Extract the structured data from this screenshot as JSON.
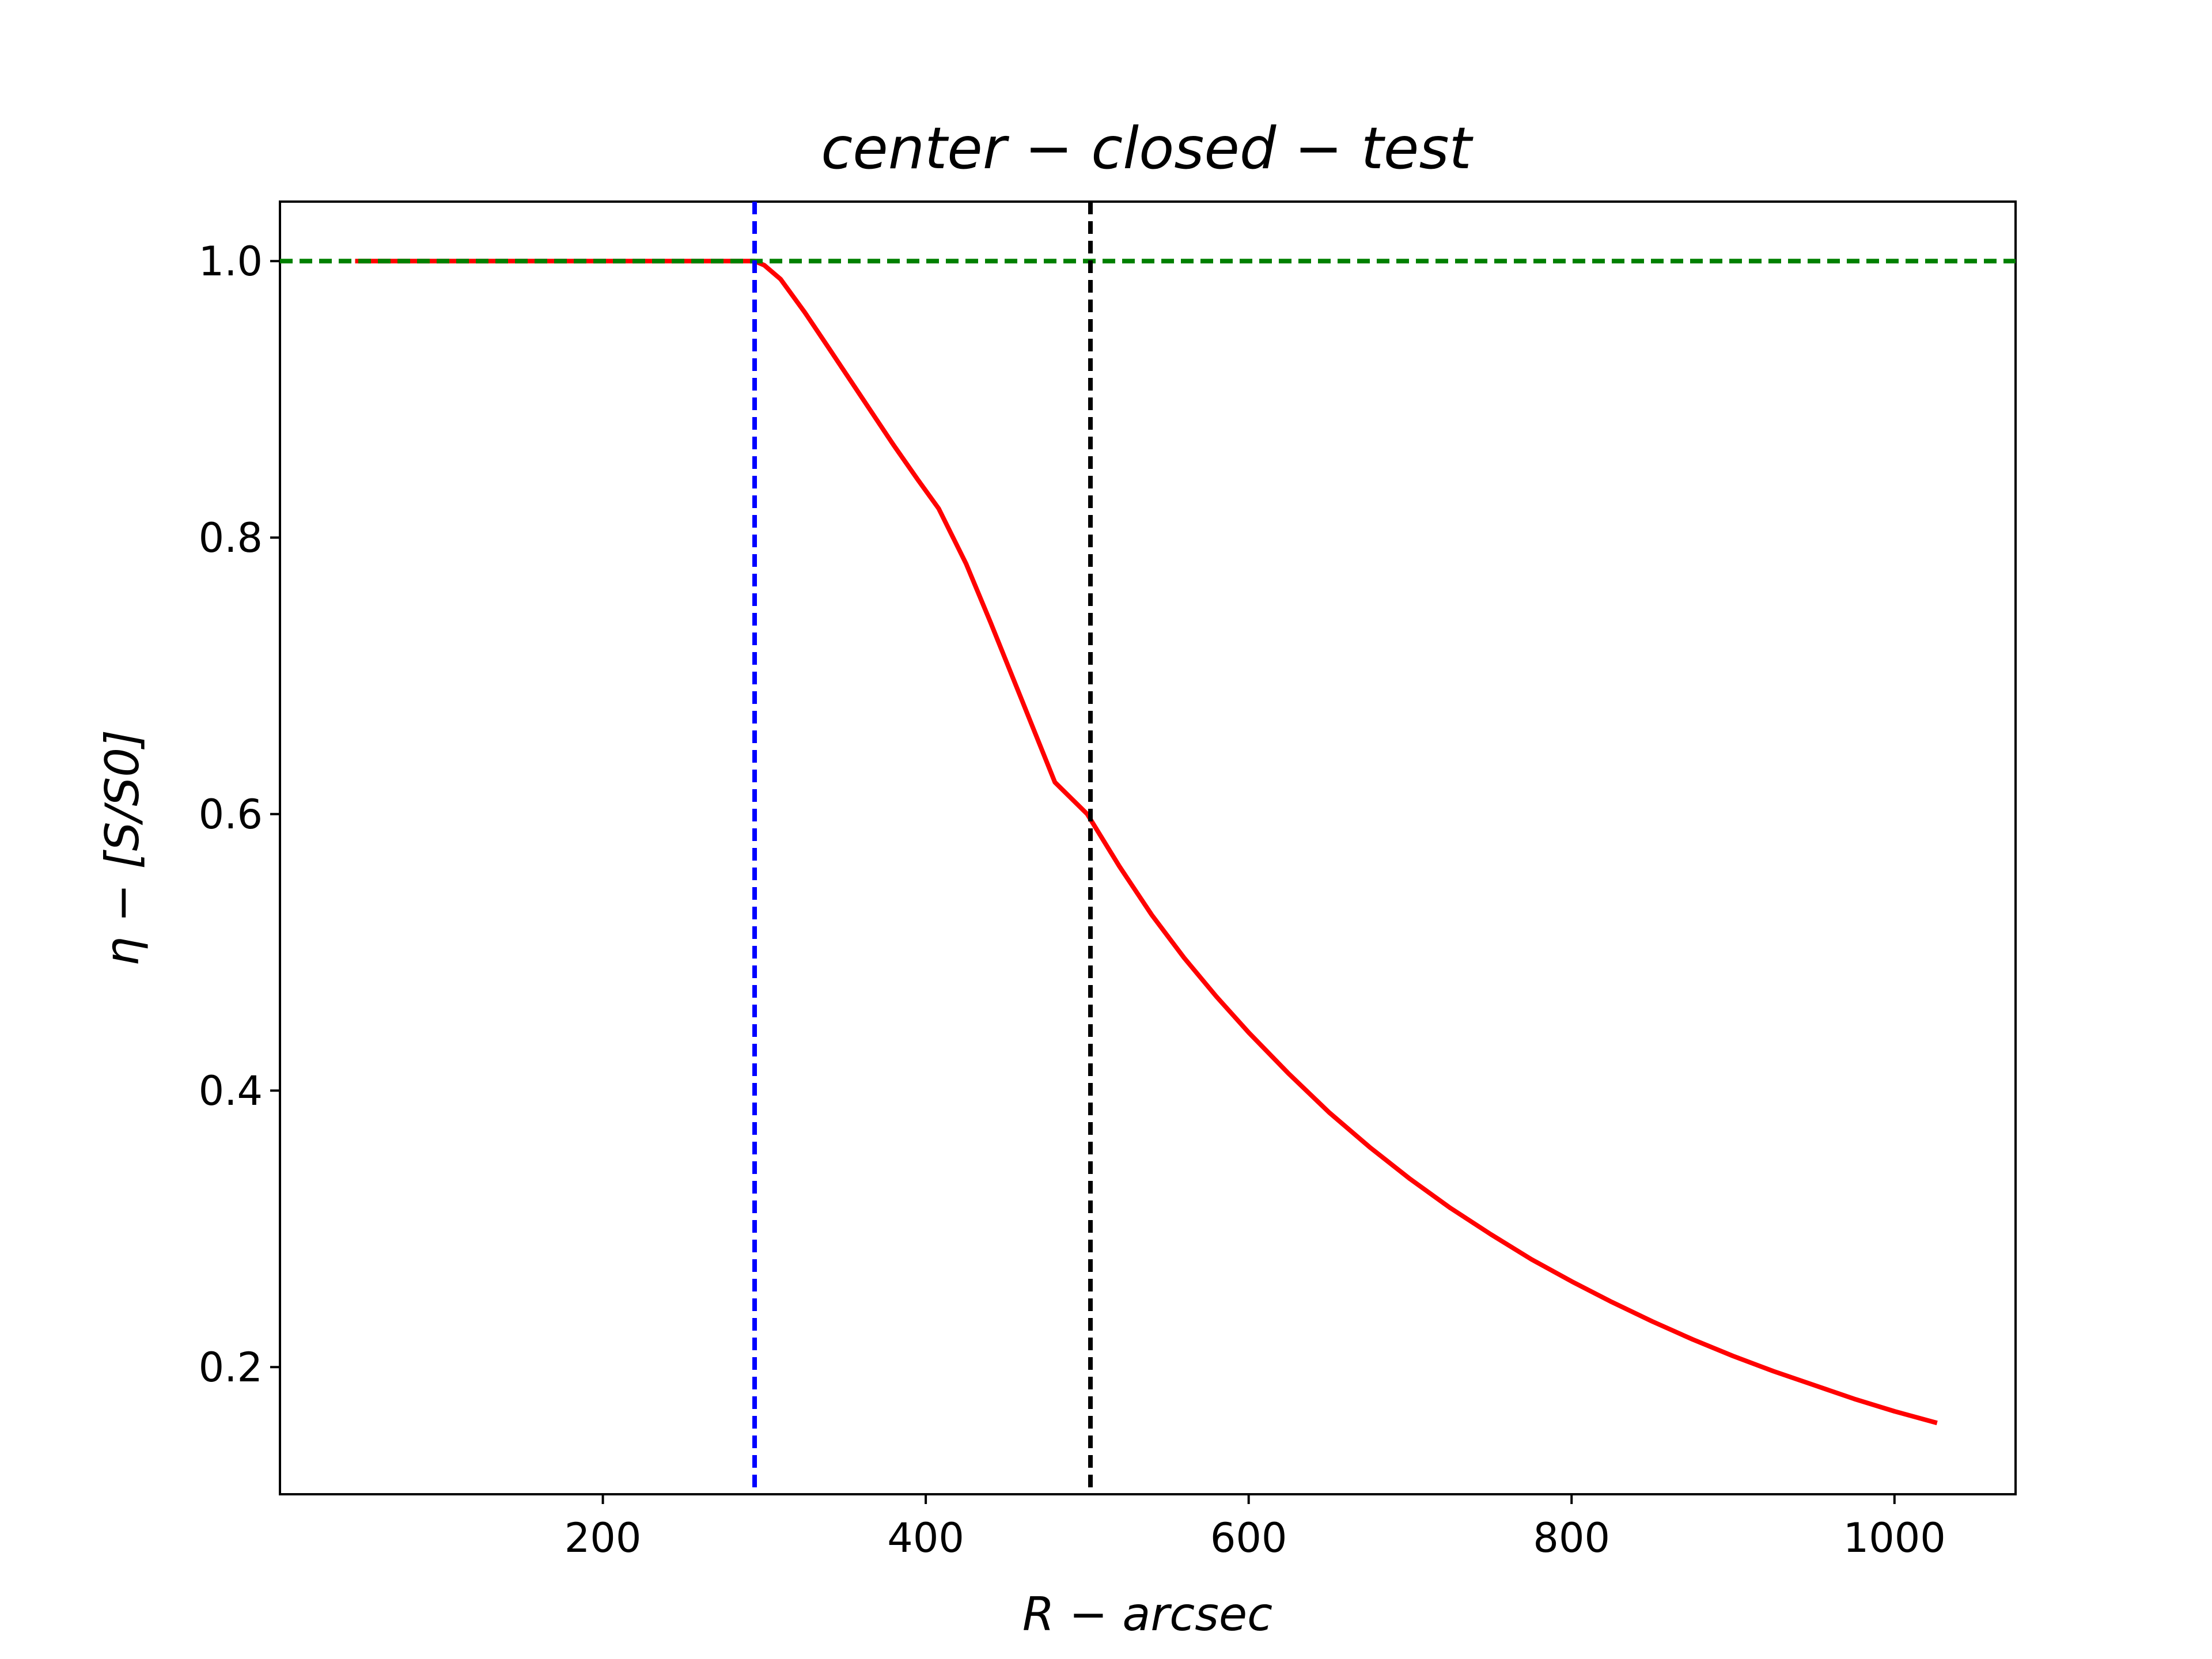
{
  "chart_data": {
    "type": "line",
    "title": "center − closed − test",
    "xlabel": "R − arcsec",
    "ylabel": "η − [S/S0]",
    "xlim": [
      0,
      1075
    ],
    "ylim": [
      0.108,
      1.043
    ],
    "xticks": [
      200,
      400,
      600,
      800,
      1000
    ],
    "yticks": [
      0.2,
      0.4,
      0.6,
      0.8,
      1.0
    ],
    "xtick_labels": [
      "200",
      "400",
      "600",
      "800",
      "1000"
    ],
    "ytick_labels": [
      "0.2",
      "0.4",
      "0.6",
      "0.8",
      "1.0"
    ],
    "grid": false,
    "legend": "none",
    "series": [
      {
        "color": "#ff0000",
        "style": "solid",
        "x": [
          48,
          100,
          150,
          200,
          250,
          294,
          300,
          310,
          325,
          340,
          360,
          380,
          395,
          408,
          425,
          440,
          460,
          480,
          500,
          520,
          540,
          560,
          580,
          600,
          625,
          650,
          675,
          700,
          725,
          750,
          775,
          800,
          825,
          850,
          875,
          900,
          925,
          950,
          975,
          1000,
          1025
        ],
        "y": [
          1.0,
          1.0,
          1.0,
          1.0,
          1.0,
          1.0,
          0.997,
          0.987,
          0.963,
          0.937,
          0.902,
          0.867,
          0.842,
          0.821,
          0.781,
          0.739,
          0.681,
          0.623,
          0.6,
          0.562,
          0.527,
          0.496,
          0.468,
          0.442,
          0.412,
          0.384,
          0.359,
          0.336,
          0.315,
          0.296,
          0.278,
          0.262,
          0.247,
          0.233,
          0.22,
          0.208,
          0.197,
          0.187,
          0.177,
          0.168,
          0.16
        ]
      }
    ],
    "reference_lines": [
      {
        "orientation": "horizontal",
        "value": 1.0,
        "color": "#008000",
        "style": "dashed"
      },
      {
        "orientation": "vertical",
        "value": 294,
        "color": "#0000ff",
        "style": "dashed"
      },
      {
        "orientation": "vertical",
        "value": 502,
        "color": "#000000",
        "style": "dashed"
      }
    ]
  }
}
